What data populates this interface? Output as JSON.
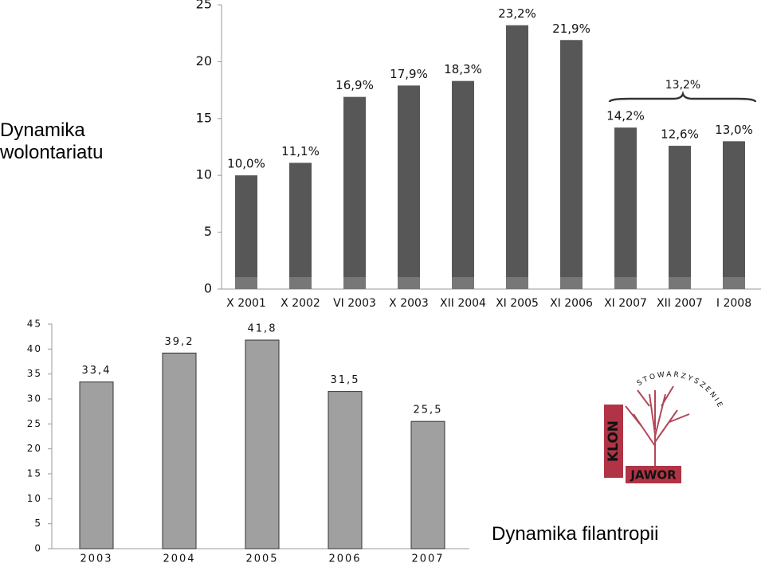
{
  "chart_data": [
    {
      "type": "bar",
      "title": "Dynamika wolontariatu",
      "categories": [
        "X 2001",
        "X 2002",
        "VI 2003",
        "X 2003",
        "XII 2004",
        "XI 2005",
        "XI 2006",
        "XI 2007",
        "XII 2007",
        "I 2008"
      ],
      "values": [
        10.0,
        11.1,
        16.9,
        17.9,
        18.3,
        23.2,
        21.9,
        14.2,
        12.6,
        13.0
      ],
      "value_labels": [
        "10,0%",
        "11,1%",
        "16,9%",
        "17,9%",
        "18,3%",
        "23,2%",
        "21,9%",
        "14,2%",
        "12,6%",
        "13,0%"
      ],
      "color": "#575757",
      "ylim": [
        0,
        25
      ],
      "yticks": [
        0,
        5,
        10,
        15,
        20,
        25
      ],
      "annotation": "13,2%"
    },
    {
      "type": "bar",
      "title": "Dynamika filantropii",
      "categories": [
        "2003",
        "2004",
        "2005",
        "2006",
        "2007"
      ],
      "values": [
        33.4,
        39.2,
        41.8,
        31.5,
        25.5
      ],
      "value_labels": [
        "33,4",
        "39,2",
        "41,8",
        "31,5",
        "25,5"
      ],
      "color": "#a0a0a0",
      "ylim": [
        0,
        45
      ],
      "yticks": [
        0,
        5,
        10,
        15,
        20,
        25,
        30,
        35,
        40,
        45
      ]
    }
  ],
  "logo": {
    "side": "KLON",
    "bottom": "JAWOR",
    "arc": "STOWARZYSZENIE"
  }
}
